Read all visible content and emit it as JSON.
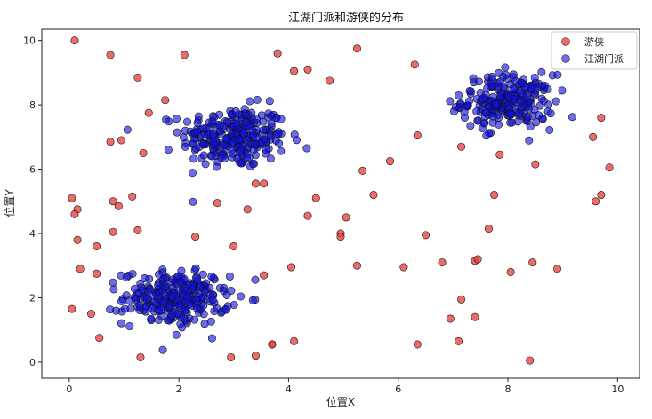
{
  "chart_data": {
    "type": "scatter",
    "title": "江湖门派和游侠的分布",
    "xlabel": "位置X",
    "ylabel": "位置Y",
    "xlim": [
      -0.5,
      10.4
    ],
    "ylim": [
      -0.5,
      10.35
    ],
    "xticks": [
      0,
      2,
      4,
      6,
      8,
      10
    ],
    "yticks": [
      0,
      2,
      4,
      6,
      8,
      10
    ],
    "xtick_labels": [
      "0",
      "2",
      "4",
      "6",
      "8",
      "10"
    ],
    "ytick_labels": [
      "0",
      "2",
      "4",
      "6",
      "8",
      "10"
    ],
    "grid": false,
    "legend_position": "top-right",
    "series": [
      {
        "name": "游侠",
        "color": "#e8413c",
        "points": [
          [
            0.1,
            10.0
          ],
          [
            0.75,
            9.55
          ],
          [
            1.25,
            8.85
          ],
          [
            2.1,
            9.55
          ],
          [
            1.75,
            8.15
          ],
          [
            1.45,
            7.75
          ],
          [
            0.75,
            6.85
          ],
          [
            0.95,
            6.9
          ],
          [
            1.35,
            6.5
          ],
          [
            0.05,
            5.1
          ],
          [
            0.15,
            4.75
          ],
          [
            0.1,
            4.6
          ],
          [
            0.8,
            5.0
          ],
          [
            0.9,
            4.85
          ],
          [
            1.15,
            5.15
          ],
          [
            0.8,
            4.05
          ],
          [
            1.25,
            4.1
          ],
          [
            0.15,
            3.8
          ],
          [
            0.5,
            3.6
          ],
          [
            2.7,
            4.95
          ],
          [
            2.3,
            3.9
          ],
          [
            3.25,
            4.75
          ],
          [
            3.0,
            3.6
          ],
          [
            0.2,
            2.9
          ],
          [
            0.5,
            2.75
          ],
          [
            0.05,
            1.65
          ],
          [
            0.4,
            1.5
          ],
          [
            0.55,
            0.75
          ],
          [
            1.3,
            0.15
          ],
          [
            2.95,
            0.15
          ],
          [
            3.4,
            0.2
          ],
          [
            3.7,
            0.55
          ],
          [
            3.7,
            0.55
          ],
          [
            4.1,
            0.65
          ],
          [
            3.55,
            2.7
          ],
          [
            4.05,
            2.95
          ],
          [
            3.4,
            5.55
          ],
          [
            3.55,
            5.55
          ],
          [
            3.8,
            9.6
          ],
          [
            4.1,
            9.05
          ],
          [
            4.35,
            9.1
          ],
          [
            4.75,
            8.75
          ],
          [
            5.25,
            9.75
          ],
          [
            4.35,
            4.55
          ],
          [
            4.5,
            5.1
          ],
          [
            4.95,
            4.0
          ],
          [
            4.95,
            3.9
          ],
          [
            5.05,
            4.5
          ],
          [
            5.25,
            3.0
          ],
          [
            5.35,
            5.95
          ],
          [
            5.55,
            5.2
          ],
          [
            5.85,
            6.25
          ],
          [
            6.1,
            2.95
          ],
          [
            6.3,
            9.25
          ],
          [
            6.35,
            7.05
          ],
          [
            6.5,
            3.95
          ],
          [
            6.35,
            0.55
          ],
          [
            6.8,
            3.1
          ],
          [
            6.95,
            1.35
          ],
          [
            7.1,
            0.65
          ],
          [
            7.15,
            1.95
          ],
          [
            7.15,
            6.7
          ],
          [
            7.4,
            3.15
          ],
          [
            7.45,
            3.2
          ],
          [
            7.4,
            1.4
          ],
          [
            7.65,
            4.15
          ],
          [
            7.75,
            5.2
          ],
          [
            7.85,
            6.45
          ],
          [
            8.05,
            2.8
          ],
          [
            8.45,
            3.1
          ],
          [
            8.5,
            6.15
          ],
          [
            8.4,
            0.05
          ],
          [
            8.9,
            2.9
          ],
          [
            9.55,
            7.0
          ],
          [
            9.7,
            7.6
          ],
          [
            9.6,
            5.0
          ],
          [
            9.7,
            5.2
          ],
          [
            9.85,
            6.05
          ]
        ]
      },
      {
        "name": "江湖门派",
        "color": "#1010e0",
        "clusters": [
          {
            "center": [
              3.0,
              7.0
            ],
            "spread": [
              0.48,
              0.48
            ],
            "count": 260
          },
          {
            "center": [
              8.0,
              8.1
            ],
            "spread": [
              0.42,
              0.42
            ],
            "count": 230
          },
          {
            "center": [
              1.95,
              2.0
            ],
            "spread": [
              0.48,
              0.42
            ],
            "count": 260
          }
        ]
      }
    ]
  }
}
